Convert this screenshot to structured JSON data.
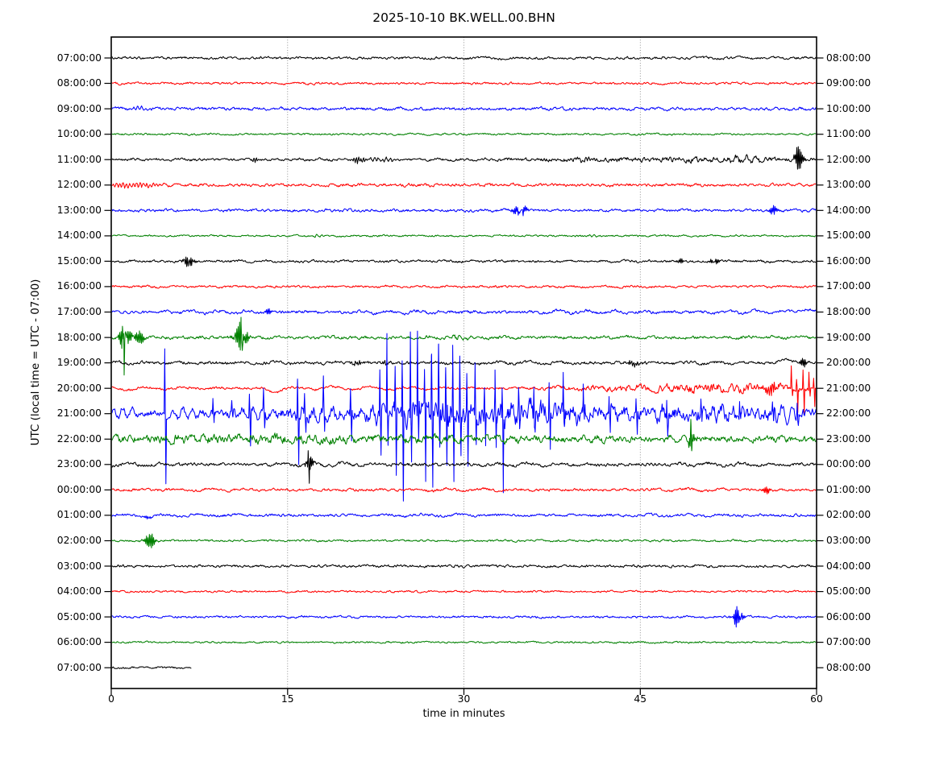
{
  "title": "2025-10-10 BK.WELL.00.BHN",
  "xlabel": "time in minutes",
  "ylabel": "UTC (local time = UTC - 07:00)",
  "palette": {
    "black": "#000000",
    "red": "#ff0000",
    "blue": "#0000ff",
    "green": "#008000"
  },
  "chart_data": {
    "type": "line",
    "subtype": "helicorder-dayplot",
    "title": "2025-10-10 BK.WELL.00.BHN",
    "xlabel": "time in minutes",
    "ylabel": "UTC (local time = UTC - 07:00)",
    "x_range": [
      0,
      60
    ],
    "x_tick_labels": [
      "0",
      "15",
      "30",
      "45",
      "60"
    ],
    "x_tick_minutes": [
      0,
      15,
      30,
      45,
      60
    ],
    "grid_minutes": [
      15,
      30,
      45
    ],
    "minutes_per_row": 60,
    "rows": [
      {
        "utc_start": "07:00:00",
        "utc_end": "08:00:00",
        "color": "black",
        "noise": 1.1,
        "wave": [
          0.8,
          3.1
        ],
        "events": [],
        "spikes": []
      },
      {
        "utc_start": "08:00:00",
        "utc_end": "09:00:00",
        "color": "red",
        "noise": 1.0,
        "wave": [
          0.7,
          2.3
        ],
        "events": [],
        "spikes": []
      },
      {
        "utc_start": "09:00:00",
        "utc_end": "10:00:00",
        "color": "blue",
        "noise": 1.3,
        "wave": [
          1.0,
          1.7
        ],
        "events": [
          {
            "type": "burst",
            "t": 2.5,
            "dur": 1.5,
            "amp": 2,
            "freq": 3
          }
        ],
        "spikes": []
      },
      {
        "utc_start": "10:00:00",
        "utc_end": "11:00:00",
        "color": "green",
        "noise": 0.8,
        "wave": [
          0.5,
          2.9
        ],
        "events": [],
        "spikes": []
      },
      {
        "utc_start": "11:00:00",
        "utc_end": "12:00:00",
        "color": "black",
        "noise": 1.1,
        "wave": [
          0.8,
          2.0
        ],
        "events": [
          {
            "type": "burst",
            "t": 12.3,
            "dur": 0.6,
            "amp": 2.5,
            "freq": 5
          },
          {
            "type": "burst",
            "t": 21.0,
            "dur": 1.2,
            "amp": 3,
            "freq": 5
          },
          {
            "type": "burst",
            "t": 23.0,
            "dur": 2.5,
            "amp": 2.2,
            "freq": 3
          },
          {
            "type": "burst",
            "t": 40.3,
            "dur": 1.5,
            "amp": 2.5,
            "freq": 4
          },
          {
            "type": "noise",
            "t": 48,
            "dur": 24,
            "amp": 1.6
          },
          {
            "type": "burst",
            "t": 53.8,
            "dur": 3,
            "amp": 5,
            "freq": 1.2
          },
          {
            "type": "burst",
            "t": 58.4,
            "dur": 0.8,
            "amp": 13,
            "freq": 8
          }
        ],
        "spikes": []
      },
      {
        "utc_start": "12:00:00",
        "utc_end": "13:00:00",
        "color": "red",
        "noise": 1.0,
        "wave": [
          0.9,
          1.1
        ],
        "events": [
          {
            "type": "burst",
            "t": 1.8,
            "dur": 4.5,
            "amp": 2.8,
            "freq": 3.5
          },
          {
            "type": "noise",
            "t": 30,
            "dur": 60,
            "amp": 0.4
          }
        ],
        "spikes": []
      },
      {
        "utc_start": "13:00:00",
        "utc_end": "14:00:00",
        "color": "blue",
        "noise": 1.2,
        "wave": [
          0.7,
          1.9
        ],
        "events": [
          {
            "type": "burst",
            "t": 34.8,
            "dur": 0.9,
            "amp": 10,
            "freq": 8
          },
          {
            "type": "burst",
            "t": 56.3,
            "dur": 0.8,
            "amp": 4.5,
            "freq": 8
          }
        ],
        "spikes": []
      },
      {
        "utc_start": "14:00:00",
        "utc_end": "15:00:00",
        "color": "green",
        "noise": 0.8,
        "wave": [
          0.4,
          2.5
        ],
        "events": [
          {
            "type": "burst",
            "t": 17.8,
            "dur": 1.6,
            "amp": 1.6,
            "freq": 2.5
          },
          {
            "type": "burst",
            "t": 41,
            "dur": 1.2,
            "amp": 1.2,
            "freq": 2.5
          }
        ],
        "spikes": []
      },
      {
        "utc_start": "15:00:00",
        "utc_end": "16:00:00",
        "color": "black",
        "noise": 1.1,
        "wave": [
          0.7,
          2.2
        ],
        "events": [
          {
            "type": "burst",
            "t": 6.6,
            "dur": 0.9,
            "amp": 6,
            "freq": 7
          },
          {
            "type": "burst",
            "t": 48.4,
            "dur": 0.5,
            "amp": 4,
            "freq": 9
          },
          {
            "type": "burst",
            "t": 51.3,
            "dur": 0.7,
            "amp": 4,
            "freq": 9
          }
        ],
        "spikes": []
      },
      {
        "utc_start": "16:00:00",
        "utc_end": "17:00:00",
        "color": "red",
        "noise": 1.0,
        "wave": [
          1.0,
          2.6
        ],
        "events": [],
        "spikes": []
      },
      {
        "utc_start": "17:00:00",
        "utc_end": "18:00:00",
        "color": "blue",
        "noise": 1.4,
        "wave": [
          1.8,
          2.4
        ],
        "events": [
          {
            "type": "burst",
            "t": 13.3,
            "dur": 0.5,
            "amp": 4.5,
            "freq": 9
          },
          {
            "type": "smooth",
            "t": 58.6,
            "dur": 1.6,
            "amp": 4
          }
        ],
        "spikes": []
      },
      {
        "utc_start": "18:00:00",
        "utc_end": "19:00:00",
        "color": "green",
        "noise": 1.4,
        "wave": [
          1.2,
          2.1
        ],
        "events": [
          {
            "type": "burst",
            "t": 1.15,
            "dur": 1.0,
            "amp": 16,
            "freq": 9
          },
          {
            "type": "burst",
            "t": 2.5,
            "dur": 0.9,
            "amp": 7,
            "freq": 8
          },
          {
            "type": "burst",
            "t": 11.0,
            "dur": 1.1,
            "amp": 15,
            "freq": 9
          },
          {
            "type": "burst",
            "t": 29.5,
            "dur": 2.5,
            "amp": 2,
            "freq": 2
          }
        ],
        "spikes": [
          {
            "t": 1.05,
            "up": 14,
            "dn": 40
          },
          {
            "t": 11.1,
            "up": 17,
            "dn": 28
          }
        ]
      },
      {
        "utc_start": "19:00:00",
        "utc_end": "20:00:00",
        "color": "black",
        "noise": 1.4,
        "wave": [
          1.3,
          2.7
        ],
        "events": [
          {
            "type": "burst",
            "t": 20.9,
            "dur": 0.8,
            "amp": 2.8,
            "freq": 6
          },
          {
            "type": "burst",
            "t": 23.4,
            "dur": 0.6,
            "amp": 2.5,
            "freq": 6
          },
          {
            "type": "burst",
            "t": 44.4,
            "dur": 1.0,
            "amp": 2.8,
            "freq": 6
          },
          {
            "type": "smooth",
            "t": 57.4,
            "dur": 1.6,
            "amp": 4
          },
          {
            "type": "burst",
            "t": 58.9,
            "dur": 0.5,
            "amp": 5,
            "freq": 8
          }
        ],
        "spikes": []
      },
      {
        "utc_start": "20:00:00",
        "utc_end": "21:00:00",
        "color": "red",
        "noise": 1.1,
        "wave": [
          2.0,
          3.2
        ],
        "events": [
          {
            "type": "smooth",
            "t": 13.9,
            "dur": 1.2,
            "amp": -5
          },
          {
            "type": "noise",
            "t": 46,
            "dur": 14,
            "amp": 2
          },
          {
            "type": "noise",
            "t": 54,
            "dur": 10,
            "amp": 3
          },
          {
            "type": "burst",
            "t": 56.2,
            "dur": 1.5,
            "amp": 5,
            "freq": 6
          }
        ],
        "spikes": [
          {
            "t": 57.9,
            "up": 26,
            "dn": 12
          },
          {
            "t": 58.35,
            "up": 10,
            "dn": 28
          },
          {
            "t": 58.9,
            "up": 24,
            "dn": 30
          },
          {
            "t": 59.4,
            "up": 20,
            "dn": 10
          },
          {
            "t": 59.8,
            "up": 12,
            "dn": 24
          }
        ]
      },
      {
        "utc_start": "21:00:00",
        "utc_end": "22:00:00",
        "color": "blue",
        "noise": 3.2,
        "wave": [
          6.5,
          0.85
        ],
        "events": [
          {
            "type": "noise",
            "t": 17,
            "dur": 6,
            "amp": 3
          },
          {
            "type": "noise",
            "t": 27.5,
            "dur": 11,
            "amp": 9
          },
          {
            "type": "noise",
            "t": 36,
            "dur": 8,
            "amp": 6
          },
          {
            "type": "noise",
            "t": 47,
            "dur": 26,
            "amp": 4
          }
        ],
        "spikes": [
          {
            "t": 4.6,
            "up": 78,
            "dn": 85
          },
          {
            "t": 8.7,
            "up": 20,
            "dn": 15
          },
          {
            "t": 10.3,
            "up": 14,
            "dn": 10
          },
          {
            "t": 11.8,
            "up": 30,
            "dn": 38
          },
          {
            "t": 13.0,
            "up": 26,
            "dn": 20
          },
          {
            "t": 15.9,
            "up": 48,
            "dn": 55
          },
          {
            "t": 16.5,
            "up": 22,
            "dn": 18
          },
          {
            "t": 18.1,
            "up": 34,
            "dn": 20
          },
          {
            "t": 20.4,
            "up": 24,
            "dn": 30
          },
          {
            "t": 22.9,
            "up": 62,
            "dn": 52
          },
          {
            "t": 23.5,
            "up": 95,
            "dn": 42
          },
          {
            "t": 24.2,
            "up": 52,
            "dn": 68
          },
          {
            "t": 24.8,
            "up": 66,
            "dn": 100
          },
          {
            "t": 25.5,
            "up": 112,
            "dn": 60
          },
          {
            "t": 26.1,
            "up": 88,
            "dn": 46
          },
          {
            "t": 26.7,
            "up": 54,
            "dn": 86
          },
          {
            "t": 27.3,
            "up": 75,
            "dn": 95
          },
          {
            "t": 27.9,
            "up": 93,
            "dn": 50
          },
          {
            "t": 28.5,
            "up": 60,
            "dn": 72
          },
          {
            "t": 29.1,
            "up": 80,
            "dn": 88
          },
          {
            "t": 29.7,
            "up": 64,
            "dn": 54
          },
          {
            "t": 30.3,
            "up": 46,
            "dn": 60
          },
          {
            "t": 31.0,
            "up": 54,
            "dn": 40
          },
          {
            "t": 31.8,
            "up": 40,
            "dn": 50
          },
          {
            "t": 32.7,
            "up": 48,
            "dn": 32
          },
          {
            "t": 33.3,
            "up": 32,
            "dn": 90
          },
          {
            "t": 34.7,
            "up": 42,
            "dn": 26
          },
          {
            "t": 36.0,
            "up": 46,
            "dn": 20
          },
          {
            "t": 37.3,
            "up": 30,
            "dn": 40
          },
          {
            "t": 38.5,
            "up": 40,
            "dn": 18
          },
          {
            "t": 40.2,
            "up": 28,
            "dn": 16
          },
          {
            "t": 42.4,
            "up": 22,
            "dn": 24
          },
          {
            "t": 44.7,
            "up": 24,
            "dn": 14
          },
          {
            "t": 47.3,
            "up": 18,
            "dn": 20
          },
          {
            "t": 50.2,
            "up": 20,
            "dn": 12
          },
          {
            "t": 53.5,
            "up": 16,
            "dn": 14
          },
          {
            "t": 56.3,
            "up": 14,
            "dn": 16
          },
          {
            "t": 58.4,
            "up": 16,
            "dn": 12
          }
        ]
      },
      {
        "utc_start": "22:00:00",
        "utc_end": "23:00:00",
        "color": "green",
        "noise": 2.6,
        "wave": [
          2.8,
          1.05
        ],
        "events": [
          {
            "type": "noise",
            "t": 16,
            "dur": 34,
            "amp": 1.5
          },
          {
            "type": "burst",
            "t": 49.4,
            "dur": 0.7,
            "amp": 8,
            "freq": 9
          }
        ],
        "spikes": [
          {
            "t": 49.35,
            "up": 22,
            "dn": 8
          }
        ]
      },
      {
        "utc_start": "23:00:00",
        "utc_end": "00:00:00",
        "color": "black",
        "noise": 1.5,
        "wave": [
          1.8,
          2.6
        ],
        "events": [
          {
            "type": "burst",
            "t": 16.85,
            "dur": 0.6,
            "amp": 9,
            "freq": 9
          }
        ],
        "spikes": [
          {
            "t": 16.8,
            "up": 9,
            "dn": 22
          }
        ]
      },
      {
        "utc_start": "00:00:00",
        "utc_end": "01:00:00",
        "color": "red",
        "noise": 1.2,
        "wave": [
          1.5,
          2.9
        ],
        "events": [
          {
            "type": "burst",
            "t": 55.7,
            "dur": 0.6,
            "amp": 5,
            "freq": 8
          }
        ],
        "spikes": []
      },
      {
        "utc_start": "01:00:00",
        "utc_end": "02:00:00",
        "color": "blue",
        "noise": 1.2,
        "wave": [
          1.3,
          3.2
        ],
        "events": [
          {
            "type": "smooth",
            "t": 3.3,
            "dur": 0.9,
            "amp": -4
          },
          {
            "type": "burst",
            "t": 3.1,
            "dur": 0.5,
            "amp": 3,
            "freq": 7
          }
        ],
        "spikes": []
      },
      {
        "utc_start": "02:00:00",
        "utc_end": "03:00:00",
        "color": "green",
        "noise": 0.9,
        "wave": [
          0.6,
          2.8
        ],
        "events": [
          {
            "type": "burst",
            "t": 3.2,
            "dur": 1.1,
            "amp": 9,
            "freq": 8
          }
        ],
        "spikes": []
      },
      {
        "utc_start": "03:00:00",
        "utc_end": "04:00:00",
        "color": "black",
        "noise": 1.2,
        "wave": [
          0.5,
          3.5
        ],
        "events": [],
        "spikes": []
      },
      {
        "utc_start": "04:00:00",
        "utc_end": "05:00:00",
        "color": "red",
        "noise": 0.9,
        "wave": [
          0.4,
          2.2
        ],
        "events": [],
        "spikes": []
      },
      {
        "utc_start": "05:00:00",
        "utc_end": "06:00:00",
        "color": "blue",
        "noise": 1.0,
        "wave": [
          0.6,
          2.7
        ],
        "events": [
          {
            "type": "burst",
            "t": 53.3,
            "dur": 0.8,
            "amp": 11,
            "freq": 9
          }
        ],
        "spikes": []
      },
      {
        "utc_start": "06:00:00",
        "utc_end": "07:00:00",
        "color": "green",
        "noise": 0.8,
        "wave": [
          0.4,
          3.0
        ],
        "events": [],
        "spikes": []
      },
      {
        "utc_start": "07:00:00",
        "utc_end": "08:00:00",
        "color": "black",
        "noise": 0.9,
        "wave": [
          0.4,
          2.5
        ],
        "events": [],
        "spikes": [],
        "extent": [
          0,
          6.8
        ]
      }
    ]
  }
}
